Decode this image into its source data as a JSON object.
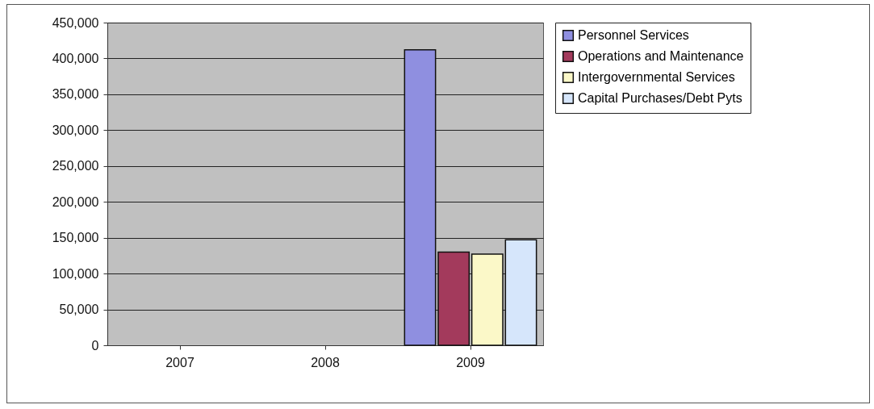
{
  "chart_data": {
    "type": "bar",
    "categories": [
      "2007",
      "2008",
      "2009"
    ],
    "series": [
      {
        "name": "Personnel Services",
        "color": "#8f8fe0",
        "values": [
          null,
          null,
          412000
        ]
      },
      {
        "name": "Operations and Maintenance",
        "color": "#a33a5c",
        "values": [
          null,
          null,
          130000
        ]
      },
      {
        "name": "Intergovernmental Services",
        "color": "#fbf8c8",
        "values": [
          null,
          null,
          127000
        ]
      },
      {
        "name": "Capital Purchases/Debt Pyts",
        "color": "#d6e6fb",
        "values": [
          null,
          null,
          147000
        ]
      }
    ],
    "ylim": [
      0,
      450000
    ],
    "yticks": [
      0,
      {
        "value": 50000,
        "label": "50,000"
      },
      {
        "value": 100000,
        "label": "100,000"
      },
      {
        "value": 150000,
        "label": "150,000"
      },
      {
        "value": 200000,
        "label": "200,000"
      },
      {
        "value": 250000,
        "label": "250,000"
      },
      {
        "value": 300000,
        "label": "300,000"
      },
      {
        "value": 350000,
        "label": "350,000"
      },
      {
        "value": 400000,
        "label": "400,000"
      },
      {
        "value": 450000,
        "label": "450,000"
      }
    ],
    "grid": "y",
    "legend": "right"
  }
}
